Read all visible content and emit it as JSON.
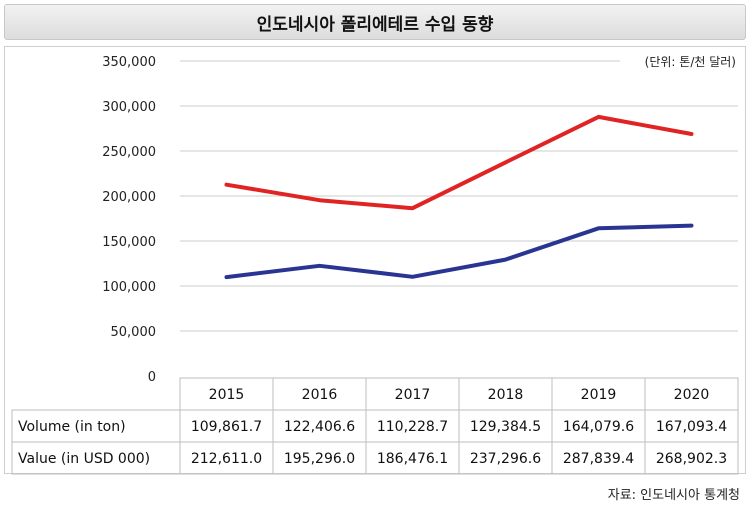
{
  "title": "인도네시아 폴리에테르 수입 동향",
  "source": "자료: 인도네시아 통계청",
  "colors": {
    "value": "#e02424",
    "volume": "#2a3593",
    "grid": "#cccccc"
  },
  "chart_data": {
    "type": "line",
    "title": "인도네시아 폴리에테르 수입 동향",
    "unit_label": "(단위: 톤/천 달러)",
    "categories": [
      "2015",
      "2016",
      "2017",
      "2018",
      "2019",
      "2020"
    ],
    "series": [
      {
        "name": "Volume (in ton)",
        "values": [
          109861.7,
          122406.6,
          110228.7,
          129384.5,
          164079.6,
          167093.4
        ],
        "labels": [
          "109,861.7",
          "122,406.6",
          "110,228.7",
          "129,384.5",
          "164,079.6",
          "167,093.4"
        ]
      },
      {
        "name": "Value (in USD 000)",
        "values": [
          212611.0,
          195296.0,
          186476.1,
          237296.6,
          287839.4,
          268902.3
        ],
        "labels": [
          "212,611.0",
          "195,296.0",
          "186,476.1",
          "237,296.6",
          "287,839.4",
          "268,902.3"
        ]
      }
    ],
    "ylim": [
      0,
      350000
    ],
    "yticks": [
      "0",
      "50,000",
      "100,000",
      "150,000",
      "200,000",
      "250,000",
      "300,000",
      "350,000"
    ],
    "grid": true,
    "data_table": true
  }
}
